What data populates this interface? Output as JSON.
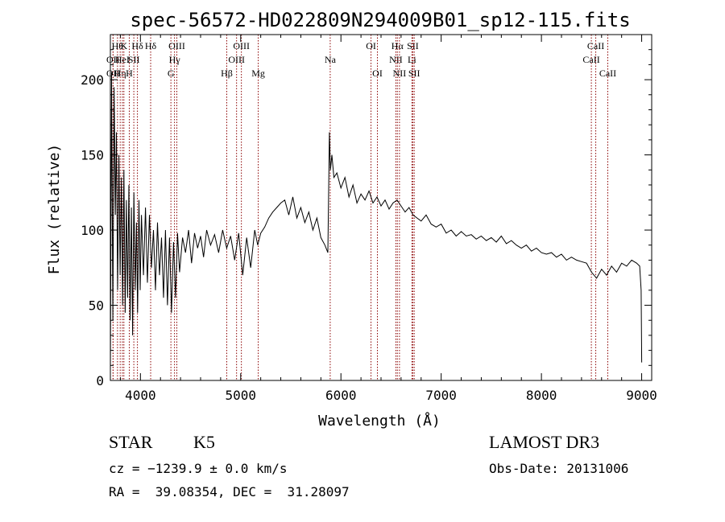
{
  "chart_data": {
    "type": "line",
    "title": "spec-56572-HD022809N294009B01_sp12-115.fits",
    "xlabel": "Wavelength (Å)",
    "ylabel": "Flux (relative)",
    "xlim": [
      3700,
      9100
    ],
    "ylim": [
      0,
      230
    ],
    "xticks": [
      4000,
      5000,
      6000,
      7000,
      8000,
      9000
    ],
    "yticks": [
      0,
      50,
      100,
      150,
      200
    ],
    "grid": false,
    "line_color": "#000000",
    "marker_color": "#8b0000",
    "series": [
      {
        "x": [
          3700,
          3712,
          3725,
          3738,
          3750,
          3760,
          3772,
          3785,
          3797,
          3810,
          3822,
          3835,
          3848,
          3860,
          3872,
          3885,
          3897,
          3910,
          3922,
          3935,
          3948,
          3960,
          3972,
          3985,
          3997,
          4010,
          4030,
          4050,
          4070,
          4090,
          4110,
          4130,
          4150,
          4170,
          4190,
          4210,
          4230,
          4250,
          4270,
          4290,
          4310,
          4330,
          4350,
          4370,
          4390,
          4420,
          4450,
          4480,
          4510,
          4540,
          4570,
          4600,
          4630,
          4660,
          4700,
          4740,
          4780,
          4820,
          4860,
          4900,
          4940,
          4980,
          5020,
          5060,
          5100,
          5140,
          5170,
          5200,
          5240,
          5280,
          5320,
          5360,
          5400,
          5440,
          5480,
          5520,
          5560,
          5600,
          5640,
          5680,
          5720,
          5760,
          5800,
          5840,
          5870,
          5885,
          5895,
          5910,
          5930,
          5960,
          6000,
          6040,
          6080,
          6120,
          6160,
          6200,
          6240,
          6280,
          6320,
          6360,
          6400,
          6440,
          6480,
          6520,
          6560,
          6600,
          6640,
          6680,
          6720,
          6760,
          6800,
          6850,
          6900,
          6950,
          7000,
          7050,
          7100,
          7150,
          7200,
          7250,
          7300,
          7350,
          7400,
          7450,
          7500,
          7550,
          7600,
          7650,
          7700,
          7750,
          7800,
          7850,
          7900,
          7950,
          8000,
          8050,
          8100,
          8150,
          8200,
          8250,
          8300,
          8350,
          8400,
          8450,
          8500,
          8550,
          8600,
          8650,
          8700,
          8750,
          8800,
          8850,
          8900,
          8950,
          8980,
          8995,
          9000
        ],
        "y": [
          5,
          205,
          40,
          195,
          110,
          165,
          60,
          150,
          70,
          135,
          50,
          140,
          45,
          120,
          55,
          130,
          40,
          115,
          30,
          125,
          60,
          105,
          45,
          120,
          60,
          110,
          70,
          115,
          65,
          110,
          75,
          100,
          60,
          105,
          70,
          95,
          55,
          100,
          50,
          95,
          45,
          92,
          55,
          98,
          72,
          95,
          85,
          100,
          78,
          98,
          88,
          96,
          82,
          100,
          90,
          97,
          85,
          100,
          88,
          96,
          80,
          98,
          70,
          95,
          75,
          100,
          90,
          98,
          102,
          108,
          112,
          115,
          118,
          120,
          110,
          122,
          108,
          115,
          105,
          112,
          100,
          108,
          95,
          90,
          85,
          165,
          140,
          150,
          135,
          138,
          128,
          135,
          122,
          130,
          118,
          124,
          120,
          126,
          118,
          122,
          116,
          120,
          114,
          118,
          120,
          116,
          112,
          115,
          110,
          108,
          106,
          110,
          104,
          102,
          104,
          98,
          100,
          96,
          99,
          96,
          97,
          94,
          96,
          93,
          95,
          92,
          96,
          91,
          93,
          90,
          88,
          90,
          86,
          88,
          85,
          84,
          85,
          82,
          84,
          80,
          82,
          80,
          79,
          78,
          72,
          68,
          74,
          70,
          76,
          72,
          78,
          76,
          80,
          78,
          76,
          60,
          12
        ]
      }
    ],
    "line_markers": [
      {
        "wl": 3727,
        "row": 2,
        "label": "OII"
      },
      {
        "wl": 3727,
        "row": 3,
        "label": "OII"
      },
      {
        "wl": 3771,
        "row": 1,
        "label": "Hθ"
      },
      {
        "wl": 3798,
        "row": 3,
        "label": "Hη"
      },
      {
        "wl": 3820,
        "row": 2,
        "label": "HeI"
      },
      {
        "wl": 3835,
        "row": 1,
        "label": "K"
      },
      {
        "wl": 3889,
        "row": 3,
        "label": "H"
      },
      {
        "wl": 3934,
        "row": 2,
        "label": "SII"
      },
      {
        "wl": 3970,
        "row": 1,
        "label": "Hδ"
      },
      {
        "wl": 4102,
        "row": 1,
        "label": "Hδ"
      },
      {
        "wl": 4304,
        "row": 3,
        "label": "G"
      },
      {
        "wl": 4340,
        "row": 2,
        "label": "Hγ"
      },
      {
        "wl": 4363,
        "row": 1,
        "label": "OIII"
      },
      {
        "wl": 4861,
        "row": 3,
        "label": "Hβ"
      },
      {
        "wl": 4959,
        "row": 2,
        "label": "OIII"
      },
      {
        "wl": 5007,
        "row": 1,
        "label": "OIII"
      },
      {
        "wl": 5175,
        "row": 3,
        "label": "Mg"
      },
      {
        "wl": 5893,
        "row": 2,
        "label": "Na"
      },
      {
        "wl": 6300,
        "row": 1,
        "label": "OI"
      },
      {
        "wl": 6364,
        "row": 3,
        "label": "OI"
      },
      {
        "wl": 6548,
        "row": 2,
        "label": "NII"
      },
      {
        "wl": 6563,
        "row": 1,
        "label": "Hα"
      },
      {
        "wl": 6584,
        "row": 3,
        "label": "NII"
      },
      {
        "wl": 6708,
        "row": 2,
        "label": "Li"
      },
      {
        "wl": 6717,
        "row": 1,
        "label": "SII"
      },
      {
        "wl": 6731,
        "row": 3,
        "label": "SII"
      },
      {
        "wl": 8498,
        "row": 2,
        "label": "CaII"
      },
      {
        "wl": 8542,
        "row": 1,
        "label": "CaII"
      },
      {
        "wl": 8662,
        "row": 3,
        "label": "CaII"
      }
    ]
  },
  "info": {
    "class": "STAR",
    "subclass": "K5",
    "survey": "LAMOST DR3",
    "cz": "cz = −1239.9 ± 0.0 km/s",
    "obs_date": "Obs-Date: 20131006",
    "coords": "RA =  39.08354, DEC =  31.28097"
  }
}
